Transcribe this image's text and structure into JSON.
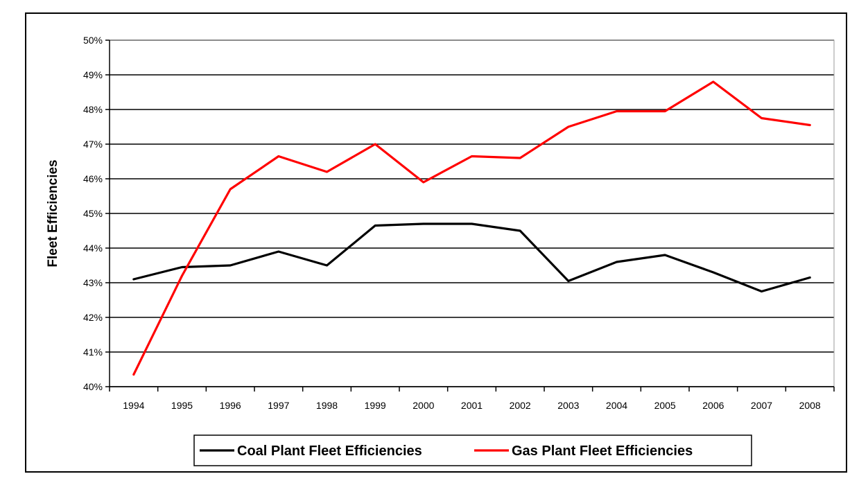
{
  "chart_data": {
    "type": "line",
    "title": "",
    "xlabel": "",
    "ylabel": "Fleet Efficiencies",
    "categories": [
      "1994",
      "1995",
      "1996",
      "1997",
      "1998",
      "1999",
      "2000",
      "2001",
      "2002",
      "2003",
      "2004",
      "2005",
      "2006",
      "2007",
      "2008"
    ],
    "ylim": [
      40,
      50
    ],
    "y_ticks": [
      "40%",
      "41%",
      "42%",
      "43%",
      "44%",
      "45%",
      "46%",
      "47%",
      "48%",
      "49%",
      "50%"
    ],
    "grid": true,
    "legend_position": "bottom",
    "series": [
      {
        "name": "Coal Plant Fleet Efficiencies",
        "color": "#000000",
        "values": [
          43.1,
          43.45,
          43.5,
          43.9,
          43.5,
          44.65,
          44.7,
          44.7,
          44.5,
          43.05,
          43.6,
          43.8,
          43.3,
          42.75,
          43.15
        ]
      },
      {
        "name": "Gas Plant Fleet Efficiencies",
        "color": "#ff0000",
        "values": [
          40.35,
          43.2,
          45.7,
          46.65,
          46.2,
          47.0,
          45.9,
          46.65,
          46.6,
          47.5,
          47.95,
          47.95,
          48.8,
          47.75,
          47.55
        ]
      }
    ]
  }
}
